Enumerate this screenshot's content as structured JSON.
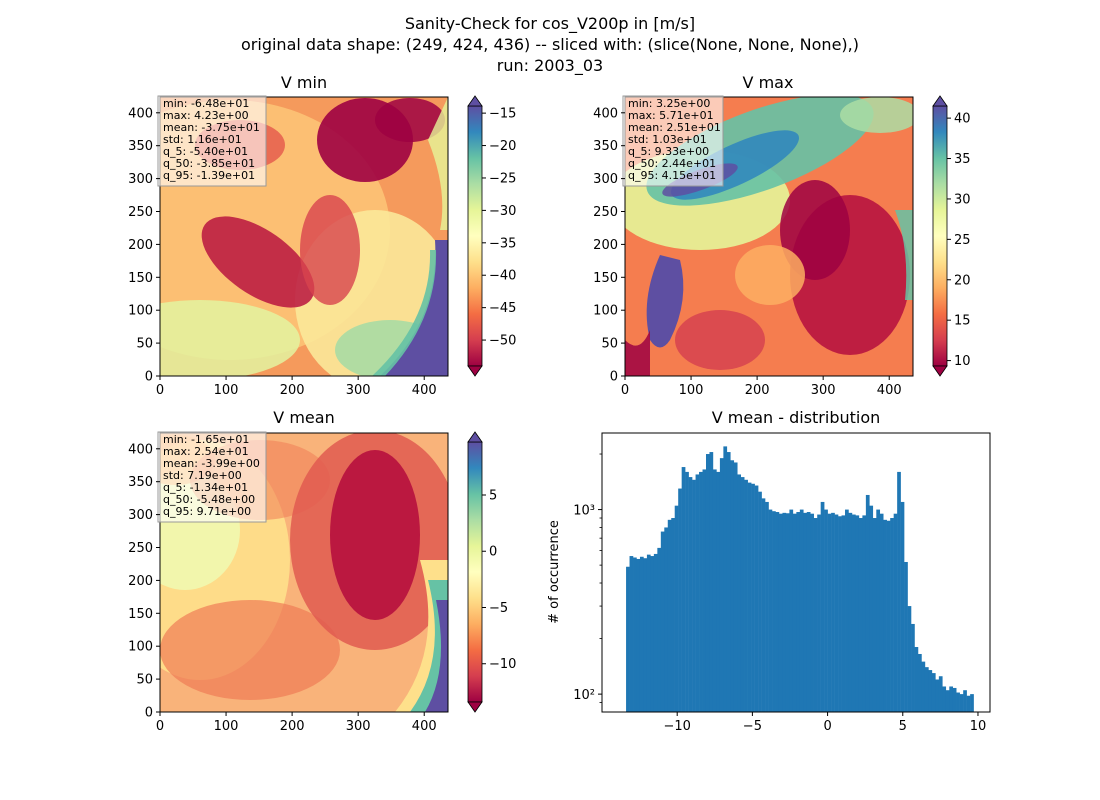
{
  "figure": {
    "title_lines": [
      "Sanity-Check for cos_V200p in [m/s]",
      "original data shape: (249, 424, 436) -- sliced with: (slice(None, None, None),)",
      "run: 2003_03"
    ]
  },
  "colormap": {
    "name": "Spectral",
    "stops": [
      "#9e0142",
      "#d53e4f",
      "#f46d43",
      "#fdae61",
      "#fee08b",
      "#ffffbf",
      "#e6f598",
      "#abdda4",
      "#66c2a5",
      "#3288bd",
      "#5e4fa2"
    ]
  },
  "panels": {
    "vmin": {
      "title": "V min",
      "stats": [
        "min: -6.48e+01",
        "max: 4.23e+00",
        "mean: -3.75e+01",
        "std: 1.16e+01",
        "q_5: -5.40e+01",
        "q_50: -3.85e+01",
        "q_95: -1.39e+01"
      ],
      "xticks": [
        "0",
        "100",
        "200",
        "300",
        "400"
      ],
      "yticks": [
        "0",
        "50",
        "100",
        "150",
        "200",
        "250",
        "300",
        "350",
        "400"
      ],
      "cbar_ticks": [
        "-50",
        "-45",
        "-40",
        "-35",
        "-30",
        "-25",
        "-20",
        "-15"
      ]
    },
    "vmax": {
      "title": "V max",
      "stats": [
        "min: 3.25e+00",
        "max: 5.71e+01",
        "mean: 2.51e+01",
        "std: 1.03e+01",
        "q_5: 9.33e+00",
        "q_50: 2.44e+01",
        "q_95: 4.15e+01"
      ],
      "xticks": [
        "0",
        "100",
        "200",
        "300",
        "400"
      ],
      "yticks": [
        "0",
        "50",
        "100",
        "150",
        "200",
        "250",
        "300",
        "350",
        "400"
      ],
      "cbar_ticks": [
        "10",
        "15",
        "20",
        "25",
        "30",
        "35",
        "40"
      ]
    },
    "vmean": {
      "title": "V mean",
      "stats": [
        "min: -1.65e+01",
        "max: 2.54e+01",
        "mean: -3.99e+00",
        "std: 7.19e+00",
        "q_5: -1.34e+01",
        "q_50: -5.48e+00",
        "q_95: 9.71e+00"
      ],
      "xticks": [
        "0",
        "100",
        "200",
        "300",
        "400"
      ],
      "yticks": [
        "0",
        "50",
        "100",
        "150",
        "200",
        "250",
        "300",
        "350",
        "400"
      ],
      "cbar_ticks": [
        "-10",
        "-5",
        "0",
        "5"
      ]
    },
    "hist": {
      "title": "V mean - distribution",
      "ylabel": "# of occurrence",
      "xticks": [
        "−10",
        "−5",
        "0",
        "5",
        "10"
      ],
      "yticks": [
        "10²",
        "10³"
      ]
    }
  },
  "chart_data": [
    {
      "type": "heatmap",
      "title": "V min",
      "x_range": [
        0,
        436
      ],
      "y_range": [
        0,
        424
      ],
      "colorbar_range": [
        -54,
        -13.9
      ],
      "colorbar_ticks": [
        -50,
        -45,
        -40,
        -35,
        -30,
        -25,
        -20,
        -15
      ],
      "colormap": "Spectral"
    },
    {
      "type": "heatmap",
      "title": "V max",
      "x_range": [
        0,
        436
      ],
      "y_range": [
        0,
        424
      ],
      "colorbar_range": [
        9.33,
        41.5
      ],
      "colorbar_ticks": [
        10,
        15,
        20,
        25,
        30,
        35,
        40
      ],
      "colormap": "Spectral"
    },
    {
      "type": "heatmap",
      "title": "V mean",
      "x_range": [
        0,
        436
      ],
      "y_range": [
        0,
        424
      ],
      "colorbar_range": [
        -13.4,
        9.71
      ],
      "colorbar_ticks": [
        -10,
        -5,
        0,
        5
      ],
      "colormap": "Spectral"
    },
    {
      "type": "bar",
      "title": "V mean - distribution",
      "ylabel": "# of occurrence",
      "xlim": [
        -15,
        10.8
      ],
      "ylim": [
        80,
        2600
      ],
      "y_scale": "log",
      "bar_color": "#1f77b4",
      "x_start": -13.4,
      "x_end": 9.71,
      "bin_count": 100,
      "values": [
        490,
        560,
        550,
        540,
        555,
        545,
        570,
        560,
        575,
        620,
        760,
        800,
        880,
        900,
        1050,
        1300,
        1700,
        1600,
        1500,
        1450,
        1550,
        1600,
        1650,
        2000,
        2050,
        1650,
        1600,
        1900,
        2200,
        2050,
        1850,
        1800,
        1550,
        1500,
        1450,
        1400,
        1380,
        1350,
        1250,
        1150,
        1100,
        1000,
        980,
        970,
        950,
        960,
        955,
        1000,
        950,
        970,
        1000,
        960,
        970,
        950,
        900,
        940,
        1100,
        1000,
        950,
        960,
        940,
        920,
        930,
        1000,
        960,
        940,
        930,
        900,
        930,
        1200,
        1050,
        900,
        1000,
        950,
        880,
        870,
        900,
        950,
        1600,
        1100,
        520,
        300,
        240,
        180,
        165,
        150,
        140,
        135,
        130,
        120,
        125,
        110,
        105,
        110,
        108,
        102,
        100,
        105,
        98,
        100
      ]
    }
  ]
}
